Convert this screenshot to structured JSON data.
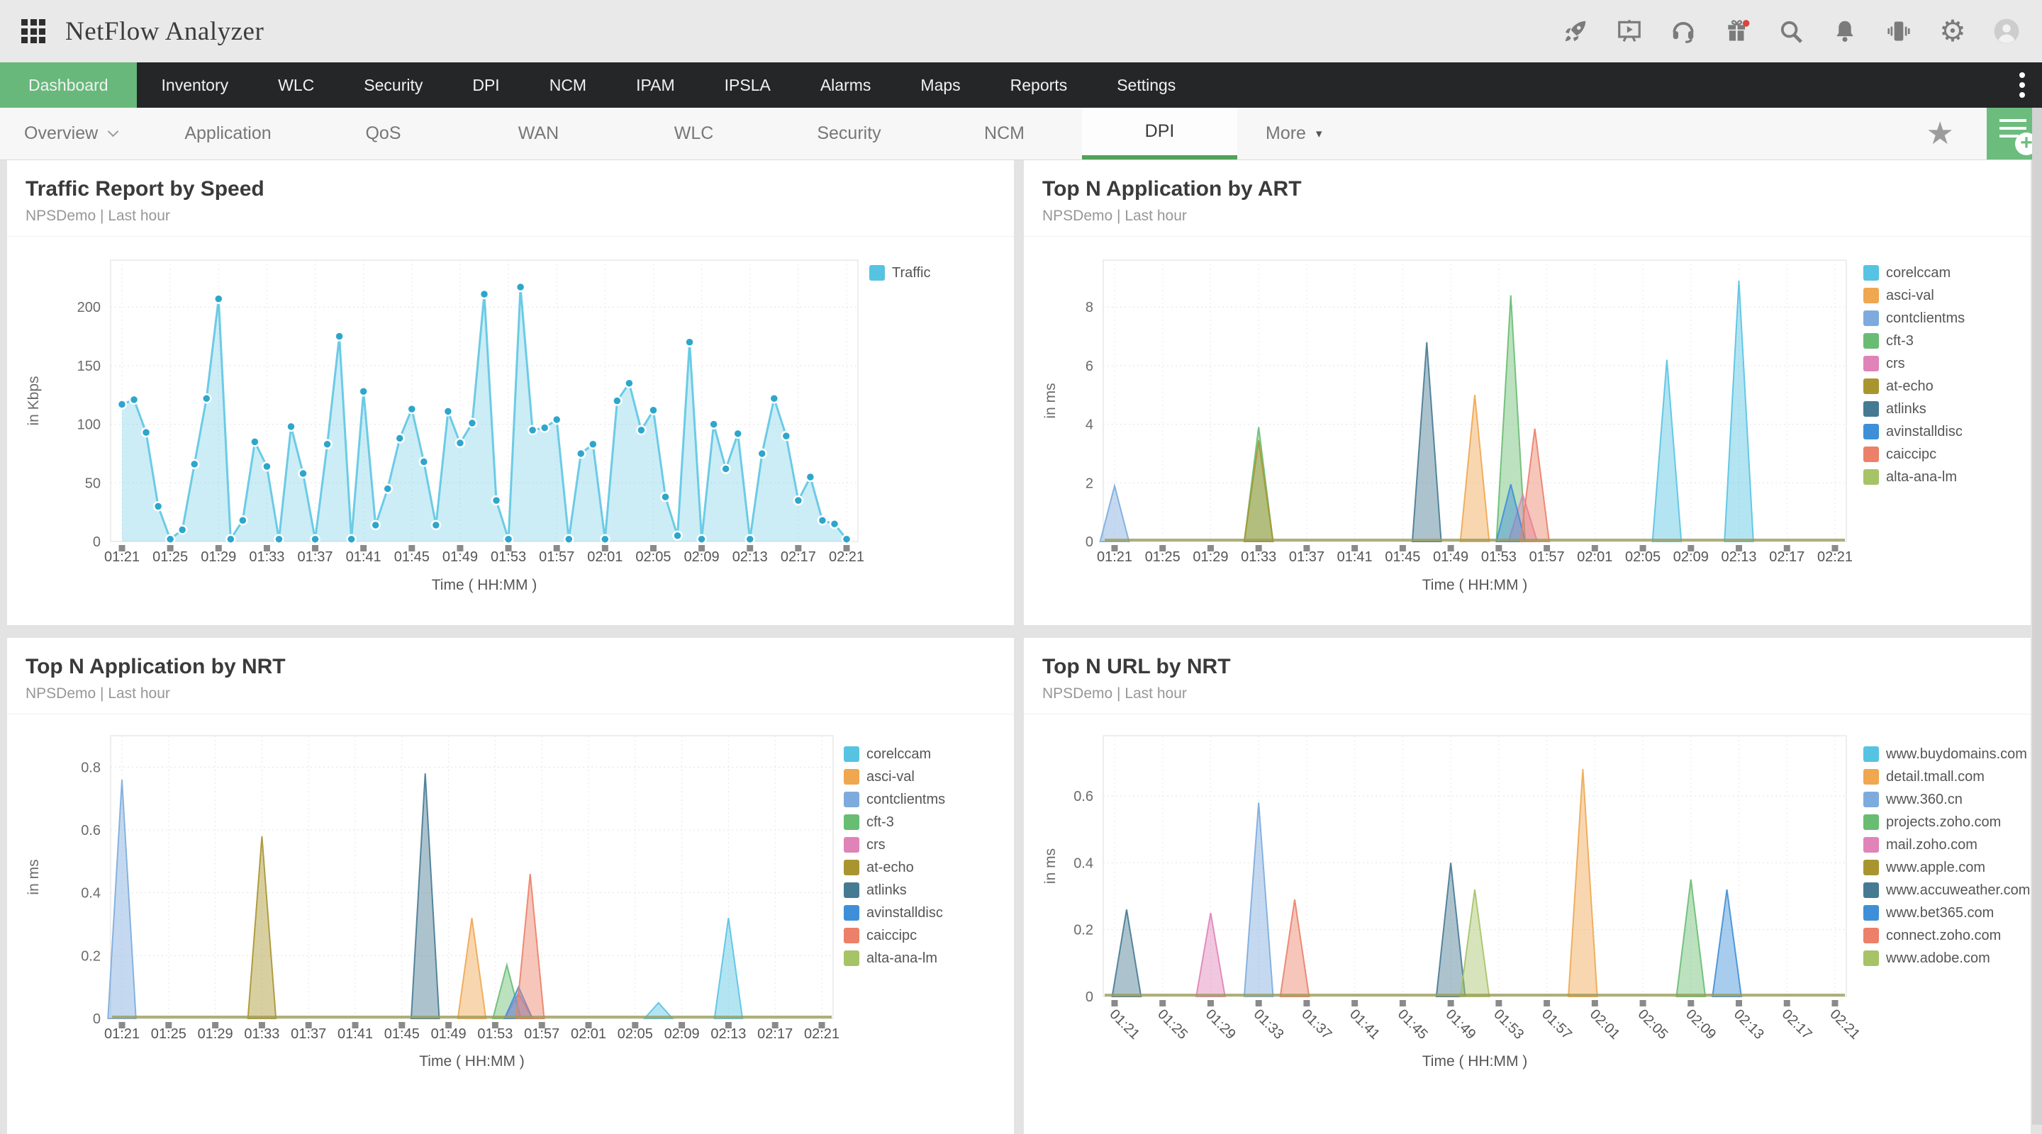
{
  "app": {
    "title": "NetFlow Analyzer"
  },
  "colors": {
    "nav_bg": "#242628",
    "active_green": "#67b87a",
    "tab_underline_green": "#53a15c",
    "add_button_green": "#6cbc7e",
    "badge_red": "#d8453e",
    "panel_bg": "#ffffff"
  },
  "topbar": {
    "icons": [
      "rocket-icon",
      "demo-presentation-icon",
      "support-headset-icon",
      "gift-icon",
      "search-icon",
      "notifications-bell-icon",
      "mobile-app-icon",
      "settings-gear-icon",
      "user-avatar"
    ]
  },
  "nav": {
    "items": [
      {
        "label": "Dashboard",
        "active": true
      },
      {
        "label": "Inventory"
      },
      {
        "label": "WLC"
      },
      {
        "label": "Security"
      },
      {
        "label": "DPI"
      },
      {
        "label": "NCM"
      },
      {
        "label": "IPAM"
      },
      {
        "label": "IPSLA"
      },
      {
        "label": "Alarms"
      },
      {
        "label": "Maps"
      },
      {
        "label": "Reports"
      },
      {
        "label": "Settings"
      }
    ]
  },
  "subnav": {
    "overview_label": "Overview",
    "tabs": [
      {
        "label": "Application"
      },
      {
        "label": "QoS"
      },
      {
        "label": "WAN"
      },
      {
        "label": "WLC"
      },
      {
        "label": "Security"
      },
      {
        "label": "NCM"
      },
      {
        "label": "DPI",
        "active": true
      }
    ],
    "more_label": "More",
    "more_triangle": "▾",
    "star_glyph": "★",
    "gear_glyph": "⚙"
  },
  "panels": [
    {
      "title": "Traffic Report by Speed",
      "subtitle": "NPSDemo | Last hour"
    },
    {
      "title": "Top N Application by ART",
      "subtitle": "NPSDemo | Last hour"
    },
    {
      "title": "Top N Application by NRT",
      "subtitle": "NPSDemo | Last hour"
    },
    {
      "title": "Top N URL by NRT",
      "subtitle": "NPSDemo | Last hour"
    }
  ],
  "chart_data": [
    {
      "type": "area",
      "title": "Traffic Report by Speed",
      "xlabel": "Time ( HH:MM )",
      "ylabel": "in Kbps",
      "x_start": "01:21",
      "x_interval_minutes": 1,
      "x_tick_labels": [
        "01:21",
        "01:25",
        "01:29",
        "01:33",
        "01:37",
        "01:41",
        "01:45",
        "01:49",
        "01:53",
        "01:57",
        "02:01",
        "02:05",
        "02:09",
        "02:13",
        "02:17",
        "02:21"
      ],
      "yticks": [
        0,
        50,
        100,
        150,
        200
      ],
      "ylim": [
        0,
        240
      ],
      "grid": true,
      "legend_position": "top-right",
      "series": [
        {
          "name": "Traffic",
          "color": "#56c3e2",
          "dot_color": "#2ea6cc",
          "values": [
            117,
            121,
            93,
            30,
            2,
            10,
            66,
            122,
            207,
            2,
            18,
            85,
            64,
            2,
            98,
            58,
            2,
            83,
            175,
            2,
            128,
            14,
            45,
            88,
            113,
            68,
            14,
            111,
            84,
            101,
            211,
            35,
            2,
            217,
            95,
            97,
            104,
            2,
            75,
            83,
            2,
            120,
            135,
            95,
            112,
            38,
            5,
            170,
            2,
            100,
            62,
            92,
            2,
            75,
            122,
            90,
            35,
            55,
            18,
            15,
            2
          ]
        }
      ]
    },
    {
      "type": "spikes",
      "title": "Top N Application by ART",
      "xlabel": "Time ( HH:MM )",
      "ylabel": "in ms",
      "x_tick_labels": [
        "01:21",
        "01:25",
        "01:29",
        "01:33",
        "01:37",
        "01:41",
        "01:45",
        "01:49",
        "01:53",
        "01:57",
        "02:01",
        "02:05",
        "02:09",
        "02:13",
        "02:17",
        "02:21"
      ],
      "yticks": [
        0,
        2,
        4,
        6,
        8
      ],
      "ylim": [
        0,
        9.6
      ],
      "grid": true,
      "legend_position": "right",
      "baseline_color": "#9b9b59",
      "series": [
        {
          "name": "corelccam",
          "color": "#56c3e2",
          "spikes": [
            {
              "time": "02:07",
              "value": 6.2
            },
            {
              "time": "02:13",
              "value": 8.9
            }
          ]
        },
        {
          "name": "asci-val",
          "color": "#efa750",
          "spikes": [
            {
              "time": "01:51",
              "value": 5.0
            }
          ]
        },
        {
          "name": "contclientms",
          "color": "#7dabdd",
          "spikes": [
            {
              "time": "01:21",
              "value": 1.9
            }
          ]
        },
        {
          "name": "cft-3",
          "color": "#68bd72",
          "spikes": [
            {
              "time": "01:33",
              "value": 3.9
            },
            {
              "time": "01:54",
              "value": 8.4
            }
          ]
        },
        {
          "name": "crs",
          "color": "#e083b8",
          "spikes": [
            {
              "time": "01:55",
              "value": 1.6
            }
          ]
        },
        {
          "name": "at-echo",
          "color": "#a9952f",
          "spikes": [
            {
              "time": "01:33",
              "value": 3.45
            }
          ]
        },
        {
          "name": "atlinks",
          "color": "#467a93",
          "spikes": [
            {
              "time": "01:47",
              "value": 6.8
            }
          ]
        },
        {
          "name": "avinstalldisc",
          "color": "#3f8fd8",
          "spikes": [
            {
              "time": "01:54",
              "value": 1.95
            }
          ]
        },
        {
          "name": "caiccipc",
          "color": "#ec8068",
          "spikes": [
            {
              "time": "01:56",
              "value": 3.85
            }
          ]
        },
        {
          "name": "alta-ana-lm",
          "color": "#a6c368",
          "spikes": []
        }
      ]
    },
    {
      "type": "spikes",
      "title": "Top N Application by NRT",
      "xlabel": "Time ( HH:MM )",
      "ylabel": "in ms",
      "x_tick_labels": [
        "01:21",
        "01:25",
        "01:29",
        "01:33",
        "01:37",
        "01:41",
        "01:45",
        "01:49",
        "01:53",
        "01:57",
        "02:01",
        "02:05",
        "02:09",
        "02:13",
        "02:17",
        "02:21"
      ],
      "yticks": [
        0,
        0.2,
        0.4,
        0.6,
        0.8
      ],
      "ylim": [
        0,
        0.9
      ],
      "grid": true,
      "legend_position": "right",
      "baseline_color": "#9b9b59",
      "series": [
        {
          "name": "corelccam",
          "color": "#56c3e2",
          "spikes": [
            {
              "time": "02:07",
              "value": 0.05
            },
            {
              "time": "02:13",
              "value": 0.32
            }
          ]
        },
        {
          "name": "asci-val",
          "color": "#efa750",
          "spikes": [
            {
              "time": "01:51",
              "value": 0.32
            }
          ]
        },
        {
          "name": "contclientms",
          "color": "#7dabdd",
          "spikes": [
            {
              "time": "01:21",
              "value": 0.76
            }
          ]
        },
        {
          "name": "cft-3",
          "color": "#68bd72",
          "spikes": [
            {
              "time": "01:54",
              "value": 0.17
            }
          ]
        },
        {
          "name": "crs",
          "color": "#e083b8",
          "spikes": [
            {
              "time": "01:55",
              "value": 0.08
            }
          ]
        },
        {
          "name": "at-echo",
          "color": "#a9952f",
          "spikes": [
            {
              "time": "01:33",
              "value": 0.58
            }
          ]
        },
        {
          "name": "atlinks",
          "color": "#467a93",
          "spikes": [
            {
              "time": "01:47",
              "value": 0.78
            }
          ]
        },
        {
          "name": "avinstalldisc",
          "color": "#3f8fd8",
          "spikes": [
            {
              "time": "01:55",
              "value": 0.1
            }
          ]
        },
        {
          "name": "caiccipc",
          "color": "#ec8068",
          "spikes": [
            {
              "time": "01:56",
              "value": 0.46
            }
          ]
        },
        {
          "name": "alta-ana-lm",
          "color": "#a6c368",
          "spikes": []
        }
      ]
    },
    {
      "type": "spikes",
      "title": "Top N URL by NRT",
      "xlabel": "Time ( HH:MM )",
      "ylabel": "in ms",
      "x_tick_labels": [
        "01:21",
        "01:25",
        "01:29",
        "01:33",
        "01:37",
        "01:41",
        "01:45",
        "01:49",
        "01:53",
        "01:57",
        "02:01",
        "02:05",
        "02:09",
        "02:13",
        "02:17",
        "02:21"
      ],
      "x_label_rotation": 45,
      "yticks": [
        0,
        0.2,
        0.4,
        0.6
      ],
      "ylim": [
        0,
        0.78
      ],
      "grid": true,
      "legend_position": "right",
      "baseline_color": "#9b9b59",
      "series": [
        {
          "name": "www.buydomains.com",
          "color": "#56c3e2",
          "spikes": []
        },
        {
          "name": "detail.tmall.com",
          "color": "#efa750",
          "spikes": [
            {
              "time": "02:00",
              "value": 0.68
            }
          ]
        },
        {
          "name": "www.360.cn",
          "color": "#7dabdd",
          "spikes": [
            {
              "time": "01:33",
              "value": 0.58
            }
          ]
        },
        {
          "name": "projects.zoho.com",
          "color": "#68bd72",
          "spikes": [
            {
              "time": "02:09",
              "value": 0.35
            }
          ]
        },
        {
          "name": "mail.zoho.com",
          "color": "#e083b8",
          "spikes": [
            {
              "time": "01:29",
              "value": 0.25
            }
          ]
        },
        {
          "name": "www.apple.com",
          "color": "#a9952f",
          "spikes": []
        },
        {
          "name": "www.accuweather.com",
          "color": "#467a93",
          "spikes": [
            {
              "time": "01:22",
              "value": 0.26
            },
            {
              "time": "01:49",
              "value": 0.4
            }
          ]
        },
        {
          "name": "www.bet365.com",
          "color": "#3f8fd8",
          "spikes": [
            {
              "time": "02:12",
              "value": 0.32
            }
          ]
        },
        {
          "name": "connect.zoho.com",
          "color": "#ec8068",
          "spikes": [
            {
              "time": "01:36",
              "value": 0.29
            }
          ]
        },
        {
          "name": "www.adobe.com",
          "color": "#a6c368",
          "spikes": [
            {
              "time": "01:51",
              "value": 0.32
            }
          ]
        }
      ]
    }
  ]
}
